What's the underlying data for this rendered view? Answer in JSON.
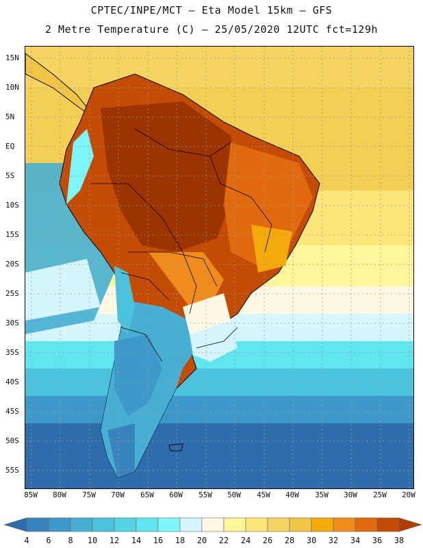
{
  "header": {
    "line1": "CPTEC/INPE/MCT –  Eta Model 15km – GFS",
    "line2": "2 Metre Temperature (C) – 25/05/2020 12UTC fct=129h"
  },
  "axes": {
    "lat_labels": [
      "15N",
      "10N",
      "5N",
      "EQ",
      "5S",
      "10S",
      "15S",
      "20S",
      "25S",
      "30S",
      "35S",
      "40S",
      "45S",
      "50S",
      "55S"
    ],
    "lon_labels": [
      "85W",
      "80W",
      "75W",
      "70W",
      "65W",
      "60W",
      "55W",
      "50W",
      "45W",
      "40W",
      "35W",
      "30W",
      "25W",
      "20W"
    ]
  },
  "colorbar": {
    "labels": [
      "4",
      "6",
      "8",
      "10",
      "12",
      "14",
      "16",
      "18",
      "20",
      "22",
      "24",
      "26",
      "28",
      "30",
      "32",
      "34",
      "36",
      "38"
    ],
    "colors": [
      "#2f6cac",
      "#3a84bd",
      "#3d99c9",
      "#46afd3",
      "#4cc3dc",
      "#53d4e5",
      "#5fe6ef",
      "#7ef7fa",
      "#d6f6ff",
      "#fff8e4",
      "#fff69a",
      "#fce67a",
      "#f6d461",
      "#f0c445",
      "#f3aa0a",
      "#ef8c1c",
      "#e06a0d",
      "#c44b04",
      "#b53c00"
    ]
  },
  "colors": {
    "ocean_south": "#2f6cac",
    "ocean_mid": "#46afd3",
    "land_hot": "#9c3400",
    "border": "#000000",
    "grid": "#9a9a9a"
  }
}
